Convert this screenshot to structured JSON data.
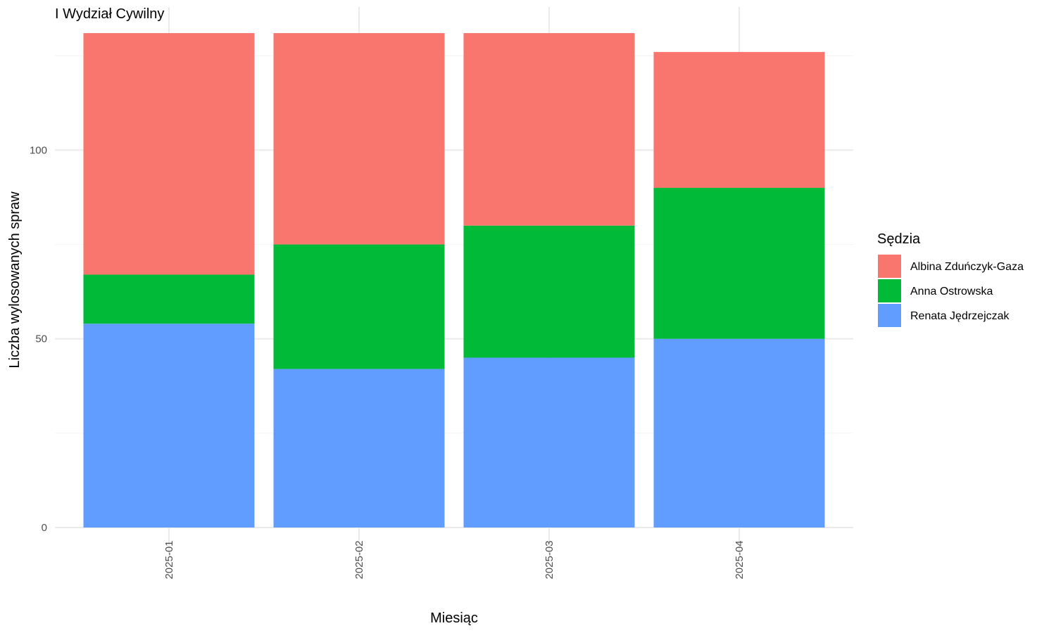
{
  "chart_data": {
    "type": "bar",
    "stacked": true,
    "title": "I Wydział Cywilny",
    "xlabel": "Miesiąc",
    "ylabel": "Liczba wylosowanych spraw",
    "categories": [
      "2025-01",
      "2025-02",
      "2025-03",
      "2025-04"
    ],
    "ylim": [
      0,
      131
    ],
    "yticks": [
      0,
      50,
      100
    ],
    "grid": true,
    "legend": {
      "title": "Sędzia",
      "position": "right"
    },
    "series": [
      {
        "name": "Renata Jędrzejczak",
        "color": "#619CFF",
        "values": [
          54,
          42,
          45,
          50
        ]
      },
      {
        "name": "Anna Ostrowska",
        "color": "#00BA38",
        "values": [
          13,
          33,
          35,
          40
        ]
      },
      {
        "name": "Albina Zduńczyk-Gaza",
        "color": "#F8766D",
        "values": [
          64,
          56,
          51,
          36
        ]
      }
    ],
    "legend_order": [
      "Albina Zduńczyk-Gaza",
      "Anna Ostrowska",
      "Renata Jędrzejczak"
    ]
  }
}
